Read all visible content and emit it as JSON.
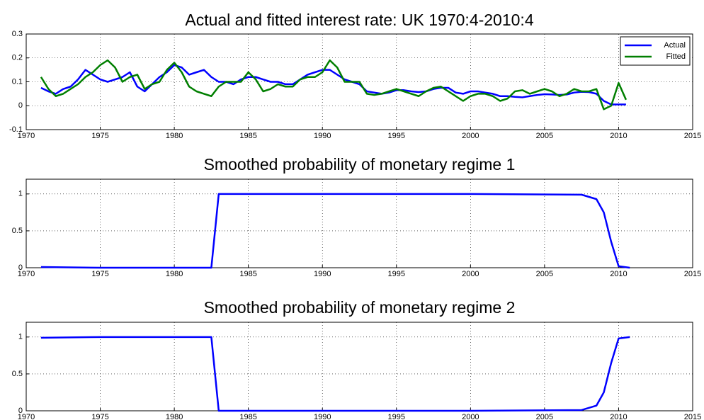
{
  "chart_data": [
    {
      "type": "line",
      "title": "Actual and fitted interest rate: UK 1970:4-2010:4",
      "x": [
        1971,
        1971.5,
        1972,
        1972.5,
        1973,
        1973.5,
        1974,
        1974.5,
        1975,
        1975.5,
        1976,
        1976.5,
        1977,
        1977.5,
        1978,
        1978.5,
        1979,
        1979.5,
        1980,
        1980.5,
        1981,
        1981.5,
        1982,
        1982.5,
        1983,
        1983.5,
        1984,
        1984.5,
        1985,
        1985.5,
        1986,
        1986.5,
        1987,
        1987.5,
        1988,
        1988.5,
        1989,
        1989.5,
        1990,
        1990.5,
        1991,
        1991.5,
        1992,
        1992.5,
        1993,
        1993.5,
        1994,
        1994.5,
        1995,
        1995.5,
        1996,
        1996.5,
        1997,
        1997.5,
        1998,
        1998.5,
        1999,
        1999.5,
        2000,
        2000.5,
        2001,
        2001.5,
        2002,
        2002.5,
        2003,
        2003.5,
        2004,
        2004.5,
        2005,
        2005.5,
        2006,
        2006.5,
        2007,
        2007.5,
        2008,
        2008.5,
        2009,
        2009.5,
        2010,
        2010.5
      ],
      "series": [
        {
          "name": "Actual",
          "color": "#0000ff",
          "values": [
            0.075,
            0.06,
            0.05,
            0.07,
            0.08,
            0.11,
            0.15,
            0.13,
            0.11,
            0.1,
            0.11,
            0.12,
            0.14,
            0.08,
            0.06,
            0.09,
            0.12,
            0.14,
            0.17,
            0.16,
            0.13,
            0.14,
            0.15,
            0.12,
            0.1,
            0.1,
            0.09,
            0.11,
            0.12,
            0.12,
            0.11,
            0.1,
            0.1,
            0.09,
            0.09,
            0.11,
            0.13,
            0.14,
            0.15,
            0.15,
            0.13,
            0.11,
            0.1,
            0.09,
            0.06,
            0.055,
            0.05,
            0.055,
            0.065,
            0.065,
            0.06,
            0.057,
            0.06,
            0.07,
            0.075,
            0.075,
            0.055,
            0.05,
            0.06,
            0.06,
            0.055,
            0.05,
            0.04,
            0.04,
            0.037,
            0.035,
            0.04,
            0.045,
            0.048,
            0.047,
            0.045,
            0.047,
            0.055,
            0.058,
            0.057,
            0.05,
            0.02,
            0.005,
            0.005,
            0.005
          ]
        },
        {
          "name": "Fitted",
          "color": "#007f00",
          "values": [
            0.12,
            0.07,
            0.04,
            0.05,
            0.07,
            0.09,
            0.12,
            0.14,
            0.17,
            0.19,
            0.16,
            0.1,
            0.12,
            0.13,
            0.07,
            0.09,
            0.1,
            0.15,
            0.18,
            0.14,
            0.08,
            0.06,
            0.05,
            0.04,
            0.08,
            0.1,
            0.1,
            0.1,
            0.14,
            0.11,
            0.06,
            0.07,
            0.09,
            0.08,
            0.08,
            0.11,
            0.12,
            0.12,
            0.14,
            0.19,
            0.16,
            0.1,
            0.1,
            0.1,
            0.05,
            0.045,
            0.05,
            0.06,
            0.07,
            0.06,
            0.05,
            0.04,
            0.06,
            0.075,
            0.08,
            0.06,
            0.04,
            0.02,
            0.04,
            0.05,
            0.05,
            0.04,
            0.02,
            0.03,
            0.06,
            0.065,
            0.05,
            0.06,
            0.07,
            0.06,
            0.04,
            0.05,
            0.07,
            0.06,
            0.06,
            0.07,
            -0.015,
            0.0,
            0.095,
            0.025
          ]
        }
      ],
      "xlim": [
        1970,
        2015
      ],
      "xticks": [
        1970,
        1975,
        1980,
        1985,
        1990,
        1995,
        2000,
        2005,
        2010,
        2015
      ],
      "ylim": [
        -0.1,
        0.3
      ],
      "yticks": [
        -0.1,
        0,
        0.1,
        0.2,
        0.3
      ],
      "grid": true,
      "legend": "northeast"
    },
    {
      "type": "line",
      "title": "Smoothed probability of monetary regime 1",
      "color": "#0000ff",
      "x": [
        1971,
        1975,
        1980,
        1982.5,
        1983,
        1990,
        2000,
        2007.5,
        2008.5,
        2009,
        2009.5,
        2010,
        2010.75
      ],
      "values": [
        0.01,
        0,
        0,
        0,
        1,
        1,
        1,
        0.99,
        0.93,
        0.75,
        0.35,
        0.02,
        0
      ],
      "xlim": [
        1970,
        2015
      ],
      "xticks": [
        1970,
        1975,
        1980,
        1985,
        1990,
        1995,
        2000,
        2005,
        2010,
        2015
      ],
      "ylim": [
        0,
        1.2
      ],
      "yticks": [
        0,
        0.5,
        1
      ],
      "grid": true
    },
    {
      "type": "line",
      "title": "Smoothed probability of monetary regime 2",
      "color": "#0000ff",
      "x": [
        1971,
        1975,
        1980,
        1982.5,
        1983,
        1990,
        2000,
        2007.5,
        2008.5,
        2009,
        2009.5,
        2010,
        2010.75
      ],
      "values": [
        0.99,
        1,
        1,
        1,
        0,
        0,
        0,
        0.01,
        0.07,
        0.25,
        0.65,
        0.98,
        1
      ],
      "xlim": [
        1970,
        2015
      ],
      "xticks": [
        1970,
        1975,
        1980,
        1985,
        1990,
        1995,
        2000,
        2005,
        2010,
        2015
      ],
      "ylim": [
        0,
        1.2
      ],
      "yticks": [
        0,
        0.5,
        1
      ],
      "grid": true
    }
  ]
}
